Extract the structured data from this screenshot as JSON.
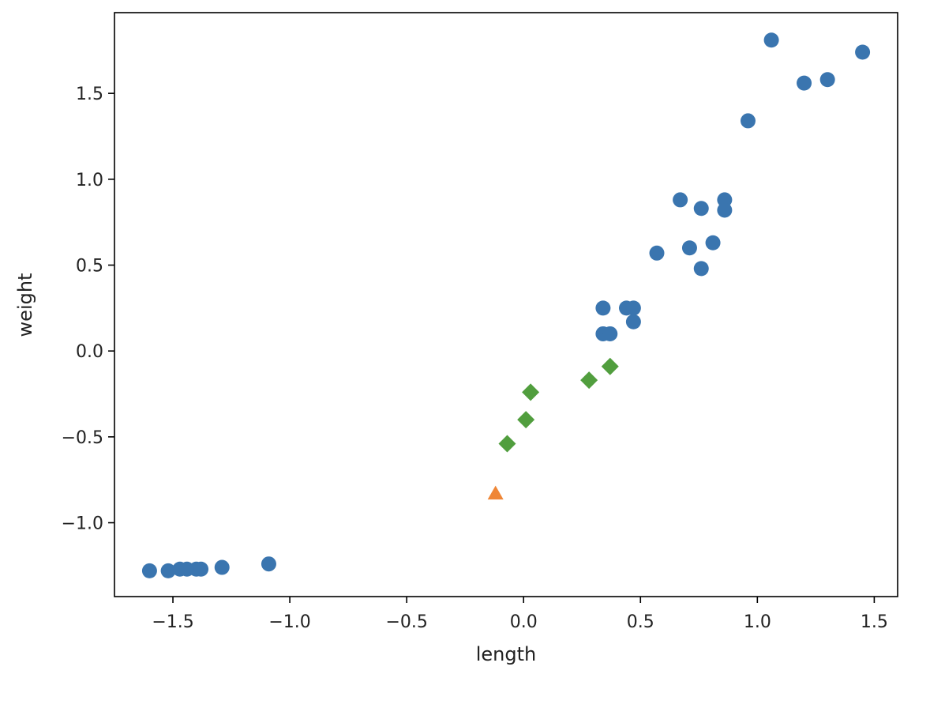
{
  "chart_data": {
    "type": "scatter",
    "title": "",
    "xlabel": "length",
    "ylabel": "weight",
    "xlim": [
      -1.75,
      1.6
    ],
    "ylim": [
      -1.43,
      1.97
    ],
    "xticks": [
      -1.5,
      -1.0,
      -0.5,
      0.0,
      0.5,
      1.0,
      1.5
    ],
    "xtick_labels": [
      "−1.5",
      "−1.0",
      "−0.5",
      "0.0",
      "0.5",
      "1.0",
      "1.5"
    ],
    "yticks": [
      -1.0,
      -0.5,
      0.0,
      0.5,
      1.0,
      1.5
    ],
    "ytick_labels": [
      "−1.0",
      "−0.5",
      "0.0",
      "0.5",
      "1.0",
      "1.5"
    ],
    "grid": false,
    "legend": "none",
    "series": [
      {
        "marker": "circle",
        "color": "#3a75af",
        "points": [
          [
            -1.6,
            -1.28
          ],
          [
            -1.52,
            -1.28
          ],
          [
            -1.47,
            -1.27
          ],
          [
            -1.44,
            -1.27
          ],
          [
            -1.4,
            -1.27
          ],
          [
            -1.38,
            -1.27
          ],
          [
            -1.29,
            -1.26
          ],
          [
            -1.09,
            -1.24
          ],
          [
            0.34,
            0.25
          ],
          [
            0.44,
            0.25
          ],
          [
            0.47,
            0.25
          ],
          [
            0.34,
            0.1
          ],
          [
            0.37,
            0.1
          ],
          [
            0.47,
            0.17
          ],
          [
            0.57,
            0.57
          ],
          [
            0.67,
            0.88
          ],
          [
            0.71,
            0.6
          ],
          [
            0.76,
            0.83
          ],
          [
            0.76,
            0.48
          ],
          [
            0.81,
            0.63
          ],
          [
            0.86,
            0.88
          ],
          [
            0.86,
            0.82
          ],
          [
            0.96,
            1.34
          ],
          [
            1.06,
            1.81
          ],
          [
            1.2,
            1.56
          ],
          [
            1.3,
            1.58
          ],
          [
            1.45,
            1.74
          ]
        ]
      },
      {
        "marker": "triangle",
        "color": "#ef8636",
        "points": [
          [
            -0.12,
            -0.83
          ]
        ]
      },
      {
        "marker": "diamond",
        "color": "#519e3e",
        "points": [
          [
            -0.07,
            -0.54
          ],
          [
            0.01,
            -0.4
          ],
          [
            0.03,
            -0.24
          ],
          [
            0.28,
            -0.17
          ],
          [
            0.37,
            -0.09
          ]
        ]
      }
    ]
  }
}
